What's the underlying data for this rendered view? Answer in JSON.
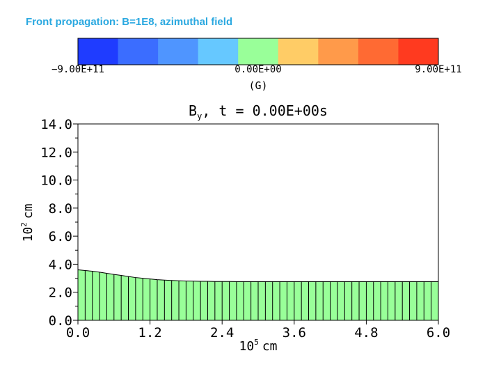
{
  "slide": {
    "title": "Front propagation: B=1E8, azimuthal field"
  },
  "colorbar": {
    "colors": [
      "#1f3cff",
      "#3b6dff",
      "#4f95ff",
      "#66c8ff",
      "#99ff99",
      "#ffcc66",
      "#ff9a4a",
      "#ff6a33",
      "#ff3a1f"
    ],
    "ticks": [
      "−9.00E+11",
      "0.00E+00",
      "9.00E+11"
    ],
    "unit": "(G)"
  },
  "chart_data": {
    "type": "bar",
    "title": "By, t = 0.00E+00s",
    "title_main": "B",
    "title_sub": "y",
    "title_rest": ", t = 0.00E+00s",
    "xlabel_prefix": "10",
    "xlabel_exp": "5",
    "xlabel_unit": "cm",
    "ylabel_prefix": "10",
    "ylabel_exp": "2",
    "ylabel_unit": "cm",
    "xlim": [
      0,
      6.0
    ],
    "ylim": [
      0,
      14.0
    ],
    "xticks": [
      "0.0",
      "1.2",
      "2.4",
      "3.6",
      "4.8",
      "6.0"
    ],
    "yticks": [
      "0.0",
      "2.0",
      "4.0",
      "6.0",
      "8.0",
      "10.0",
      "12.0",
      "14.0"
    ],
    "fill_color": "#99ff99",
    "x": [
      0.0,
      0.12,
      0.24,
      0.36,
      0.48,
      0.6,
      0.72,
      0.84,
      0.96,
      1.08,
      1.2,
      1.32,
      1.44,
      1.56,
      1.68,
      1.8,
      1.92,
      2.04,
      2.16,
      2.28,
      2.4,
      2.52,
      2.64,
      2.76,
      2.88,
      3.0,
      3.12,
      3.24,
      3.36,
      3.48,
      3.6,
      3.72,
      3.84,
      3.96,
      4.08,
      4.2,
      4.32,
      4.44,
      4.56,
      4.68,
      4.8,
      4.92,
      5.04,
      5.16,
      5.28,
      5.4,
      5.52,
      5.64,
      5.76,
      5.88,
      6.0
    ],
    "values": [
      3.6,
      3.55,
      3.5,
      3.43,
      3.35,
      3.27,
      3.2,
      3.12,
      3.05,
      3.0,
      2.95,
      2.9,
      2.87,
      2.84,
      2.82,
      2.8,
      2.79,
      2.78,
      2.78,
      2.77,
      2.77,
      2.77,
      2.76,
      2.76,
      2.76,
      2.76,
      2.76,
      2.76,
      2.76,
      2.76,
      2.76,
      2.76,
      2.76,
      2.76,
      2.76,
      2.76,
      2.76,
      2.76,
      2.76,
      2.76,
      2.76,
      2.76,
      2.76,
      2.76,
      2.76,
      2.76,
      2.76,
      2.76,
      2.76,
      2.76,
      2.76
    ]
  }
}
